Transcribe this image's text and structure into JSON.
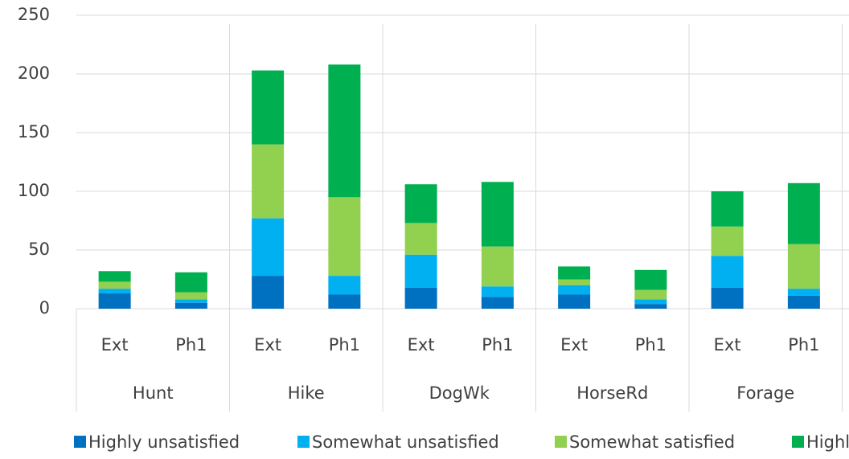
{
  "chart_data": {
    "type": "stacked-bar",
    "groups": [
      "Hunt",
      "Hike",
      "DogWk",
      "HorseRd",
      "Forage"
    ],
    "categories": [
      "Ext",
      "Ph1",
      "Ext",
      "Ph1",
      "Ext",
      "Ph1",
      "Ext",
      "Ph1",
      "Ext",
      "Ph1"
    ],
    "series": [
      {
        "name": "Highly unsatisfied",
        "color": "#0070c0",
        "values": [
          13,
          5,
          28,
          12,
          18,
          10,
          12,
          4,
          18,
          11
        ]
      },
      {
        "name": "Somewhat unsatisfied",
        "color": "#00b0f0",
        "values": [
          4,
          3,
          49,
          16,
          28,
          9,
          8,
          4,
          27,
          6
        ]
      },
      {
        "name": "Somewhat satisfied",
        "color": "#92d050",
        "values": [
          6,
          6,
          63,
          67,
          27,
          34,
          5,
          8,
          25,
          38
        ]
      },
      {
        "name": "Highly satisfied",
        "color": "#00b050",
        "values": [
          9,
          17,
          63,
          113,
          33,
          55,
          11,
          17,
          30,
          52
        ]
      }
    ],
    "ylim": [
      0,
      250
    ],
    "yticks": [
      0,
      50,
      100,
      150,
      200,
      250
    ],
    "grid": true,
    "legend": "bottom"
  }
}
